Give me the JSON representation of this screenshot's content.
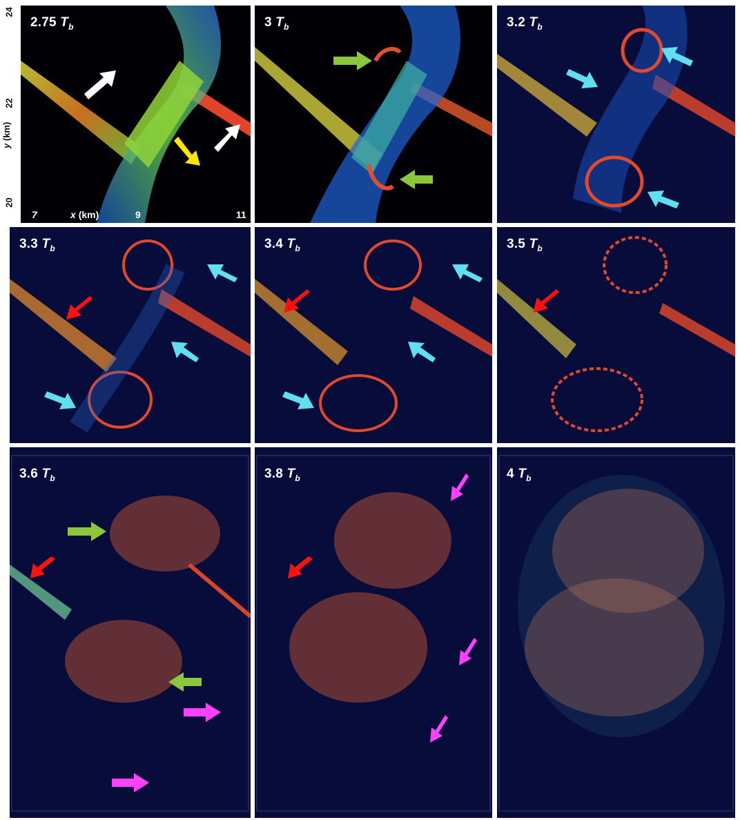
{
  "panels": [
    {
      "time": "2.75",
      "unit": "T",
      "sub": "b"
    },
    {
      "time": "3",
      "unit": "T",
      "sub": "b"
    },
    {
      "time": "3.2",
      "unit": "T",
      "sub": "b"
    },
    {
      "time": "3.3",
      "unit": "T",
      "sub": "b"
    },
    {
      "time": "3.4",
      "unit": "T",
      "sub": "b"
    },
    {
      "time": "3.5",
      "unit": "T",
      "sub": "b"
    },
    {
      "time": "3.6",
      "unit": "T",
      "sub": "b"
    },
    {
      "time": "3.8",
      "unit": "T",
      "sub": "b"
    },
    {
      "time": "4",
      "unit": "T",
      "sub": "b"
    }
  ],
  "axes": {
    "x_label": "x",
    "x_unit": "(km)",
    "x_ticks": [
      "7",
      "9",
      "11"
    ],
    "y_label": "y",
    "y_unit": "(km)",
    "y_ticks": [
      "24",
      "22",
      "20"
    ]
  },
  "colors": {
    "background": "#070c3a",
    "arrow_white": "#ffffff",
    "arrow_yellow": "#ffe600",
    "arrow_green": "#8cc63f",
    "arrow_cyan": "#5fe0f0",
    "arrow_red": "#ff1010",
    "arrow_magenta": "#ff40ff"
  }
}
